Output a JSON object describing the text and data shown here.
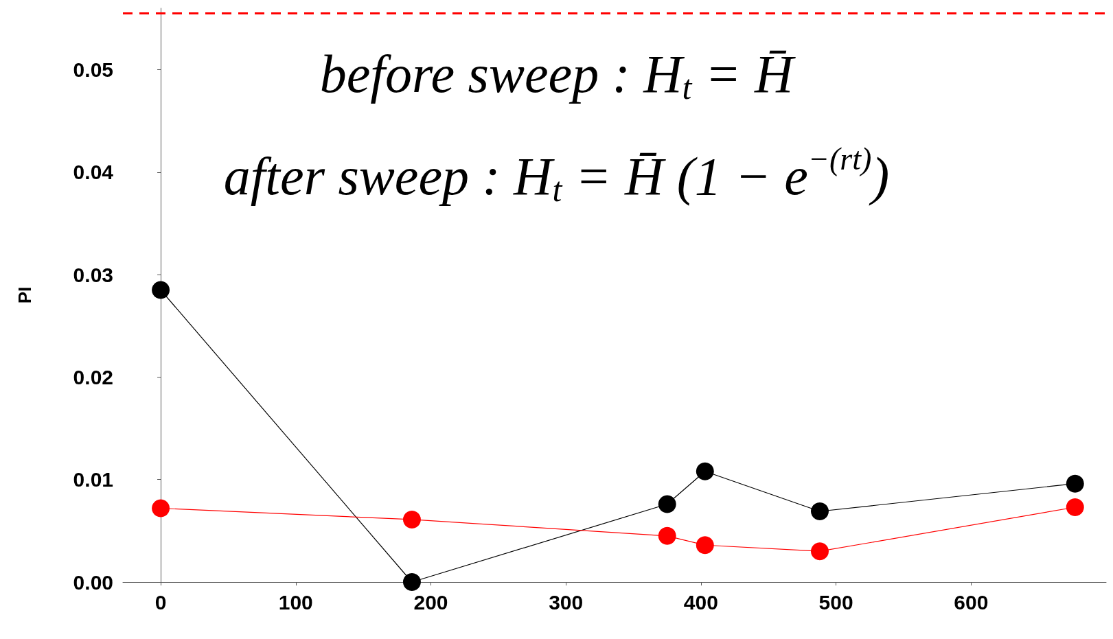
{
  "chart_data": {
    "type": "line",
    "ylabel": "PI",
    "marker": "circle",
    "line_style": "solid",
    "xlim": [
      -28,
      700
    ],
    "xticks": [
      0,
      100,
      200,
      300,
      400,
      500,
      600
    ],
    "ylim": [
      0,
      0.056
    ],
    "yticks": [
      {
        "value": 0,
        "label": "0.00"
      },
      {
        "value": 0.01,
        "label": "0.01"
      },
      {
        "value": 0.02,
        "label": "0.02"
      },
      {
        "value": 0.03,
        "label": "0.03"
      },
      {
        "value": 0.04,
        "label": "0.04"
      },
      {
        "value": 0.05,
        "label": "0.05"
      }
    ],
    "x": [
      0,
      186,
      375,
      403,
      488,
      677
    ],
    "series": [
      {
        "color": "#000000",
        "values": [
          0.0285,
          0,
          0.0076,
          0.0108,
          0.0069,
          0.0096
        ]
      },
      {
        "color": "#ff0000",
        "values": [
          0.0072,
          0.0061,
          0.0045,
          0.0036,
          0.003,
          0.0073
        ]
      }
    ],
    "ref_lines": [
      {
        "axis": "y",
        "value": 0.0555,
        "color": "#ff0000",
        "line_style": "dashed"
      }
    ],
    "annotations": [
      "before sweep : H$_{t}$ = H̄",
      "after sweep : H$_{t}$ = H̄ (1 − e$^{−(rt)}$)"
    ]
  }
}
